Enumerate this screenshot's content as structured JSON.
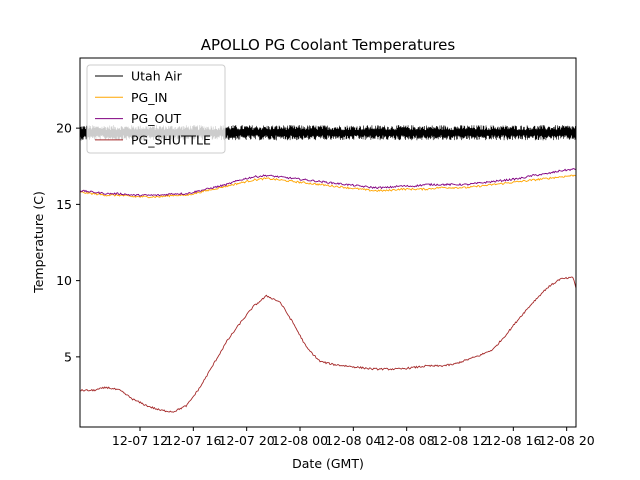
{
  "chart_data": {
    "type": "line",
    "title": "APOLLO PG Coolant Temperatures",
    "xlabel": "Date (GMT)",
    "ylabel": "Temperature (C)",
    "xlim": [
      7.5,
      44.7
    ],
    "ylim": [
      0.4,
      24.6
    ],
    "x_units": "hours since 12-07 00:00 GMT",
    "xticks": [
      {
        "value": 12,
        "label": "12-07 12"
      },
      {
        "value": 16,
        "label": "12-07 16"
      },
      {
        "value": 20,
        "label": "12-07 20"
      },
      {
        "value": 24,
        "label": "12-08 00"
      },
      {
        "value": 28,
        "label": "12-08 04"
      },
      {
        "value": 32,
        "label": "12-08 08"
      },
      {
        "value": 36,
        "label": "12-08 12"
      },
      {
        "value": 40,
        "label": "12-08 16"
      },
      {
        "value": 44,
        "label": "12-08 20"
      }
    ],
    "yticks": [
      {
        "value": 5,
        "label": "5"
      },
      {
        "value": 10,
        "label": "10"
      },
      {
        "value": 15,
        "label": "15"
      },
      {
        "value": 20,
        "label": "20"
      }
    ],
    "grid": false,
    "legend_position": "top-left",
    "x": [
      7.5,
      8.5,
      9.5,
      10.5,
      11.5,
      12.5,
      13.5,
      14.5,
      15.5,
      16.5,
      17.5,
      18.5,
      19.5,
      20.5,
      21.5,
      22.5,
      23.5,
      24.5,
      25.5,
      26.5,
      27.5,
      28.5,
      29.5,
      30.5,
      31.5,
      32.5,
      33.5,
      34.5,
      35.5,
      36.5,
      37.5,
      38.5,
      39.5,
      40.5,
      41.5,
      42.5,
      43.5,
      44.5,
      44.7
    ],
    "series": [
      {
        "name": "Utah Air",
        "color": "#000000",
        "style": "noisy band",
        "values": [
          19.7,
          19.7,
          19.7,
          19.7,
          19.7,
          19.7,
          19.7,
          19.7,
          19.7,
          19.7,
          19.7,
          19.7,
          19.7,
          19.7,
          19.7,
          19.7,
          19.7,
          19.7,
          19.7,
          19.7,
          19.7,
          19.7,
          19.7,
          19.7,
          19.7,
          19.7,
          19.7,
          19.7,
          19.7,
          19.7,
          19.7,
          19.7,
          19.7,
          19.7,
          19.7,
          19.7,
          19.7,
          19.7,
          19.7
        ],
        "noise_amplitude": 0.5
      },
      {
        "name": "PG_IN",
        "color": "#ffa500",
        "values": [
          15.8,
          15.7,
          15.6,
          15.6,
          15.5,
          15.5,
          15.5,
          15.6,
          15.6,
          15.8,
          16.0,
          16.2,
          16.4,
          16.6,
          16.7,
          16.6,
          16.5,
          16.4,
          16.3,
          16.2,
          16.1,
          16.0,
          15.9,
          15.9,
          16.0,
          16.0,
          16.0,
          16.1,
          16.1,
          16.1,
          16.2,
          16.3,
          16.4,
          16.5,
          16.6,
          16.7,
          16.8,
          16.9,
          16.9
        ]
      },
      {
        "name": "PG_OUT",
        "color": "#800080",
        "values": [
          15.9,
          15.8,
          15.7,
          15.7,
          15.6,
          15.6,
          15.6,
          15.7,
          15.7,
          15.9,
          16.1,
          16.3,
          16.6,
          16.8,
          16.9,
          16.8,
          16.7,
          16.6,
          16.5,
          16.4,
          16.3,
          16.2,
          16.1,
          16.1,
          16.2,
          16.2,
          16.3,
          16.3,
          16.3,
          16.3,
          16.4,
          16.5,
          16.6,
          16.7,
          16.9,
          17.0,
          17.2,
          17.3,
          17.3
        ]
      },
      {
        "name": "PG_SHUTTLE",
        "color": "#a52a2a",
        "values": [
          2.8,
          2.8,
          3.0,
          2.8,
          2.2,
          1.8,
          1.5,
          1.4,
          1.8,
          3.0,
          4.5,
          6.0,
          7.2,
          8.3,
          9.0,
          8.6,
          7.2,
          5.6,
          4.7,
          4.5,
          4.4,
          4.3,
          4.2,
          4.2,
          4.2,
          4.3,
          4.4,
          4.4,
          4.5,
          4.8,
          5.1,
          5.5,
          6.5,
          7.6,
          8.6,
          9.5,
          10.1,
          10.2,
          9.5
        ]
      }
    ]
  }
}
